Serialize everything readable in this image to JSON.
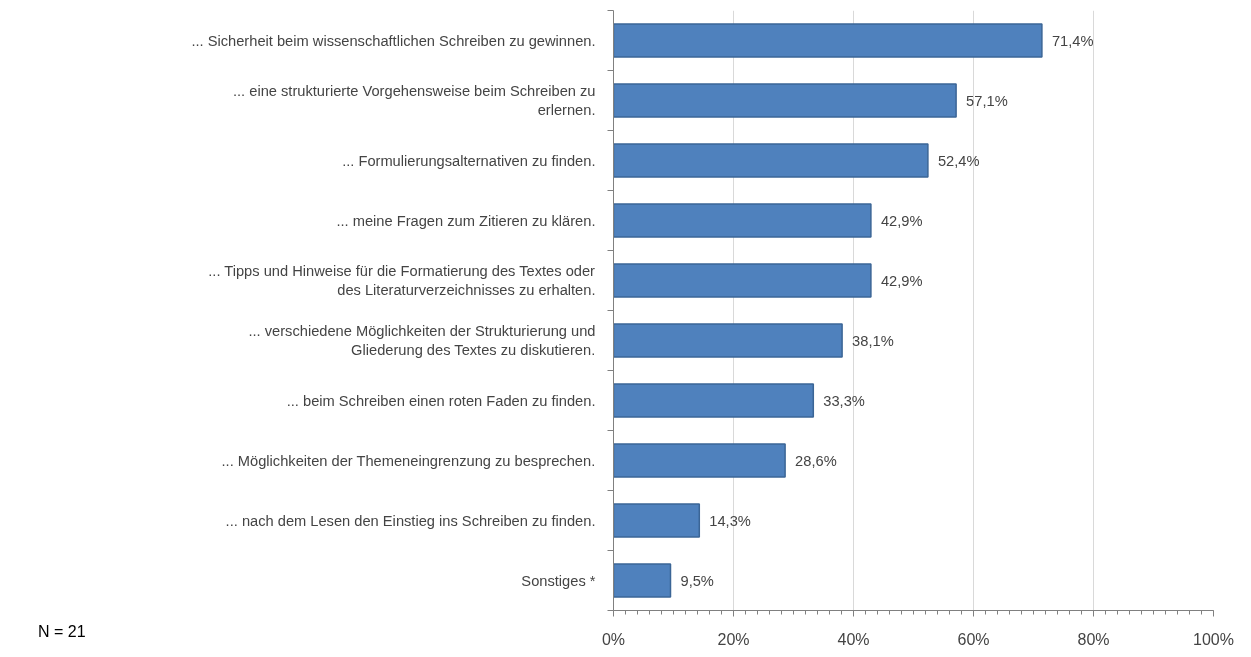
{
  "chart_data": {
    "type": "bar",
    "orientation": "horizontal",
    "categories": [
      "... Sicherheit beim wissenschaftlichen Schreiben zu gewinnen.",
      "... eine strukturierte Vorgehensweise beim Schreiben zu erlernen.",
      "... Formulierungsalternativen zu finden.",
      "... meine Fragen zum Zitieren zu klären.",
      "... Tipps und Hinweise für die Formatierung des Textes oder des Literaturverzeichnisses zu erhalten.",
      "... verschiedene Möglichkeiten der Strukturierung und Gliederung des Textes zu diskutieren.",
      "... beim Schreiben einen roten Faden zu finden.",
      "... Möglichkeiten der Themeneingrenzung zu besprechen.",
      "... nach dem Lesen den Einstieg ins Schreiben zu finden.",
      "Sonstiges *"
    ],
    "values": [
      71.4,
      57.1,
      52.4,
      42.9,
      42.9,
      38.1,
      33.3,
      28.6,
      14.3,
      9.5
    ],
    "value_labels": [
      "71,4%",
      "57,1%",
      "52,4%",
      "42,9%",
      "42,9%",
      "38,1%",
      "33,3%",
      "28,6%",
      "14,3%",
      "9,5%"
    ],
    "color": "#4f81bd",
    "xlim": [
      0,
      100
    ],
    "xticks": [
      {
        "value": 0,
        "label": "0%"
      },
      {
        "value": 20,
        "label": "20%"
      },
      {
        "value": 40,
        "label": "40%"
      },
      {
        "value": 60,
        "label": "60%"
      },
      {
        "value": 80,
        "label": "80%"
      },
      {
        "value": 100,
        "label": "100%"
      }
    ],
    "grid": "x",
    "annotations": [
      "N = 21"
    ]
  }
}
